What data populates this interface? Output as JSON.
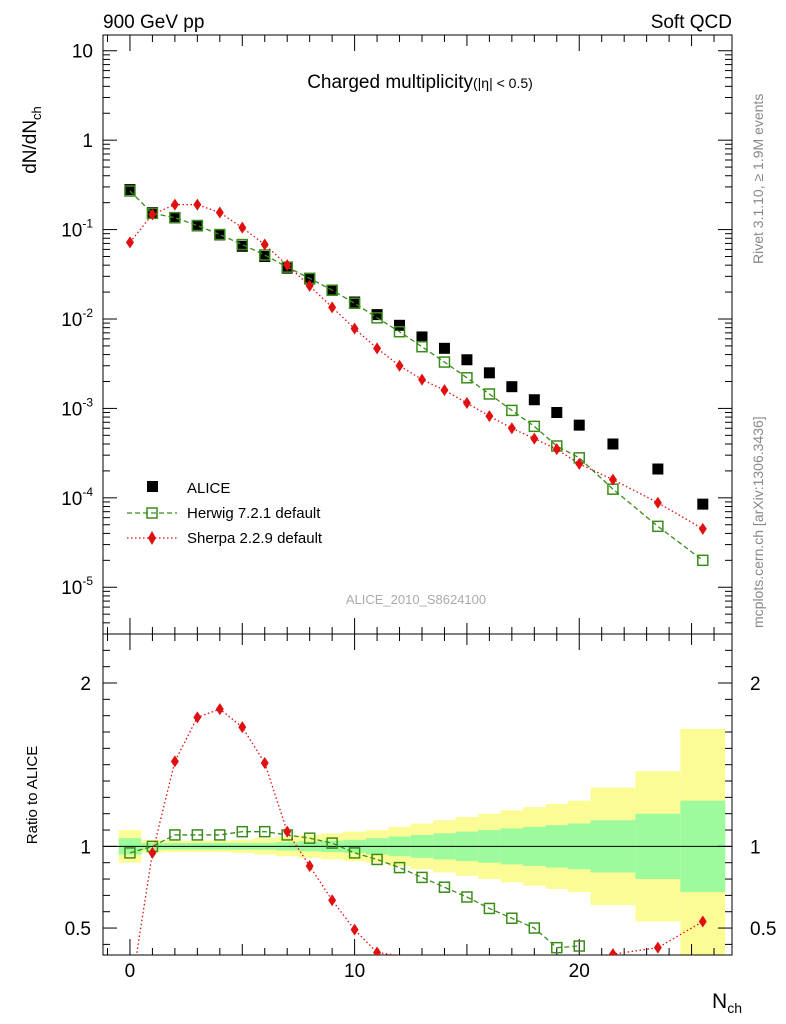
{
  "header": {
    "left": "900 GeV pp",
    "right": "Soft QCD"
  },
  "main_plot": {
    "title": "Charged multiplicity",
    "title_cut": "(|η| < 0.5)",
    "ylabel_main": "dN/dN",
    "ylabel_sub": "ch",
    "watermark": "ALICE_2010_S8624100",
    "side_label_top": "Rivet 3.1.10, ≥ 1.9M events",
    "side_label_bottom": "mcplots.cern.ch [arXiv:1306.3436]"
  },
  "legend": {
    "entries": [
      "ALICE",
      "Herwig 7.2.1 default",
      "Sherpa 2.2.9 default"
    ]
  },
  "ratio_plot": {
    "ylabel": "Ratio to ALICE",
    "xlabel_main": "N",
    "xlabel_sub": "ch"
  },
  "colors": {
    "data": "#000000",
    "herwig": "#3a8c1a",
    "sherpa": "#e01010",
    "band_inner": "#9dfa9d",
    "band_outer": "#fcfc96"
  },
  "chart_data": [
    {
      "type": "scatter",
      "log_y": true,
      "xlim": [
        -1.2,
        26.8
      ],
      "ylim": [
        3e-06,
        15
      ],
      "ytick_values": [
        1e-05,
        0.0001,
        0.001,
        0.01,
        0.1,
        1,
        10
      ],
      "ytick_labels": [
        [
          "10",
          "-5"
        ],
        [
          "10",
          "-4"
        ],
        [
          "10",
          "-3"
        ],
        [
          "10",
          "-2"
        ],
        [
          "10",
          "-1"
        ],
        [
          "1",
          ""
        ],
        [
          "10",
          ""
        ]
      ],
      "series": [
        {
          "name": "ALICE",
          "marker": "square",
          "x": [
            0,
            1,
            2,
            3,
            4,
            5,
            6,
            7,
            8,
            9,
            10,
            11,
            12,
            13,
            14,
            15,
            16,
            17,
            18,
            19,
            20,
            21.5,
            23.5,
            25.5
          ],
          "y": [
            0.28,
            0.155,
            0.135,
            0.11,
            0.087,
            0.065,
            0.05,
            0.037,
            0.028,
            0.021,
            0.0155,
            0.0112,
            0.0085,
            0.0063,
            0.0047,
            0.0035,
            0.0025,
            0.00175,
            0.00125,
            0.0009,
            0.00065,
            0.0004,
            0.00021,
            8.5e-05
          ]
        },
        {
          "name": "Herwig 7.2.1 default",
          "marker": "open-square",
          "x": [
            0,
            1,
            2,
            3,
            4,
            5,
            6,
            7,
            8,
            9,
            10,
            11,
            12,
            13,
            14,
            15,
            16,
            17,
            18,
            19,
            20,
            21.5,
            23.5,
            25.5
          ],
          "y": [
            0.27,
            0.152,
            0.136,
            0.111,
            0.088,
            0.068,
            0.052,
            0.038,
            0.0285,
            0.021,
            0.015,
            0.0103,
            0.0072,
            0.0049,
            0.0033,
            0.0022,
            0.00145,
            0.00095,
            0.00063,
            0.00038,
            0.00028,
            0.000125,
            4.8e-05,
            2e-05
          ]
        },
        {
          "name": "Sherpa 2.2.9 default",
          "marker": "diamond",
          "x": [
            0,
            1,
            2,
            3,
            4,
            5,
            6,
            7,
            8,
            9,
            10,
            11,
            12,
            13,
            14,
            15,
            16,
            17,
            18,
            19,
            20,
            21.5,
            23.5,
            25.5
          ],
          "y": [
            0.072,
            0.148,
            0.19,
            0.19,
            0.155,
            0.105,
            0.068,
            0.04,
            0.0235,
            0.0135,
            0.0078,
            0.0047,
            0.003,
            0.0021,
            0.0016,
            0.00115,
            0.00082,
            0.0006,
            0.00046,
            0.00035,
            0.00024,
            0.00016,
            8.8e-05,
            4.5e-05
          ]
        }
      ]
    },
    {
      "type": "line",
      "xlim": [
        -1.2,
        26.8
      ],
      "ylim": [
        0.335,
        2.3
      ],
      "xticks": [
        0,
        10,
        20
      ],
      "yticks": [
        0.5,
        1,
        2
      ],
      "ytick_labels": [
        "0.5",
        "1",
        "2"
      ],
      "bands": {
        "x_edges": [
          -0.5,
          0.5,
          1.5,
          2.5,
          3.5,
          4.5,
          5.5,
          6.5,
          7.5,
          8.5,
          9.5,
          10.5,
          11.5,
          12.5,
          13.5,
          14.5,
          15.5,
          16.5,
          17.5,
          18.5,
          19.5,
          20.5,
          22.5,
          24.5,
          26.5
        ],
        "inner_half_width": [
          0.05,
          0.02,
          0.02,
          0.02,
          0.02,
          0.02,
          0.02,
          0.025,
          0.03,
          0.035,
          0.04,
          0.05,
          0.06,
          0.07,
          0.08,
          0.09,
          0.1,
          0.11,
          0.12,
          0.13,
          0.14,
          0.16,
          0.2,
          0.28
        ],
        "outer_half_width": [
          0.1,
          0.04,
          0.035,
          0.035,
          0.035,
          0.04,
          0.05,
          0.06,
          0.07,
          0.08,
          0.09,
          0.1,
          0.12,
          0.14,
          0.16,
          0.18,
          0.2,
          0.22,
          0.24,
          0.26,
          0.28,
          0.36,
          0.46,
          0.72
        ]
      },
      "series": [
        {
          "name": "Herwig 7.2.1 default",
          "x": [
            0,
            1,
            2,
            3,
            4,
            5,
            6,
            7,
            8,
            9,
            10,
            11,
            12,
            13,
            14,
            15,
            16,
            17,
            18,
            19,
            20
          ],
          "y": [
            0.96,
            1.0,
            1.07,
            1.07,
            1.07,
            1.09,
            1.09,
            1.07,
            1.05,
            1.02,
            0.96,
            0.92,
            0.87,
            0.81,
            0.75,
            0.69,
            0.62,
            0.56,
            0.5,
            0.38,
            0.39
          ]
        },
        {
          "name": "Sherpa 2.2.9 default",
          "x": [
            0.25,
            1,
            2,
            3,
            4,
            5,
            6,
            7,
            8,
            9,
            10,
            11,
            19,
            20,
            21.5,
            23.5,
            25.5
          ],
          "y": [
            0.3,
            0.96,
            1.52,
            1.79,
            1.84,
            1.73,
            1.51,
            1.09,
            0.88,
            0.67,
            0.49,
            0.35,
            0.2,
            0.26,
            0.34,
            0.38,
            0.54
          ]
        }
      ]
    }
  ]
}
